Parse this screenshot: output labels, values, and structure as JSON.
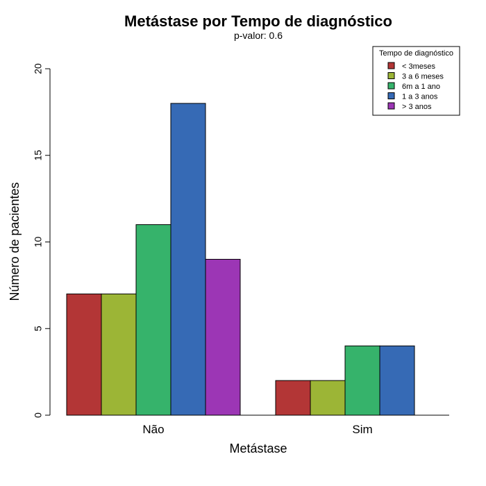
{
  "chart_data": {
    "type": "bar",
    "title": "Metástase por Tempo de diagnóstico",
    "subtitle": "p-valor: 0.6",
    "xlabel": "Metástase",
    "ylabel": "Número de pacientes",
    "categories": [
      "Não",
      "Sim"
    ],
    "ylim": [
      0,
      20
    ],
    "yticks": [
      0,
      5,
      10,
      15,
      20
    ],
    "legend": {
      "title": "Tempo de diagnóstico",
      "position": "top-right"
    },
    "series": [
      {
        "name": "< 3meses",
        "color": "#B33636",
        "values": [
          7,
          2
        ]
      },
      {
        "name": "3 a 6 meses",
        "color": "#9CB536",
        "values": [
          7,
          2
        ]
      },
      {
        "name": "6m a 1 ano",
        "color": "#36B36B",
        "values": [
          11,
          4
        ]
      },
      {
        "name": "1 a 3 anos",
        "color": "#366AB5",
        "values": [
          18,
          4
        ]
      },
      {
        "name": "> 3 anos",
        "color": "#9C36B5",
        "values": [
          9,
          0
        ]
      }
    ]
  }
}
